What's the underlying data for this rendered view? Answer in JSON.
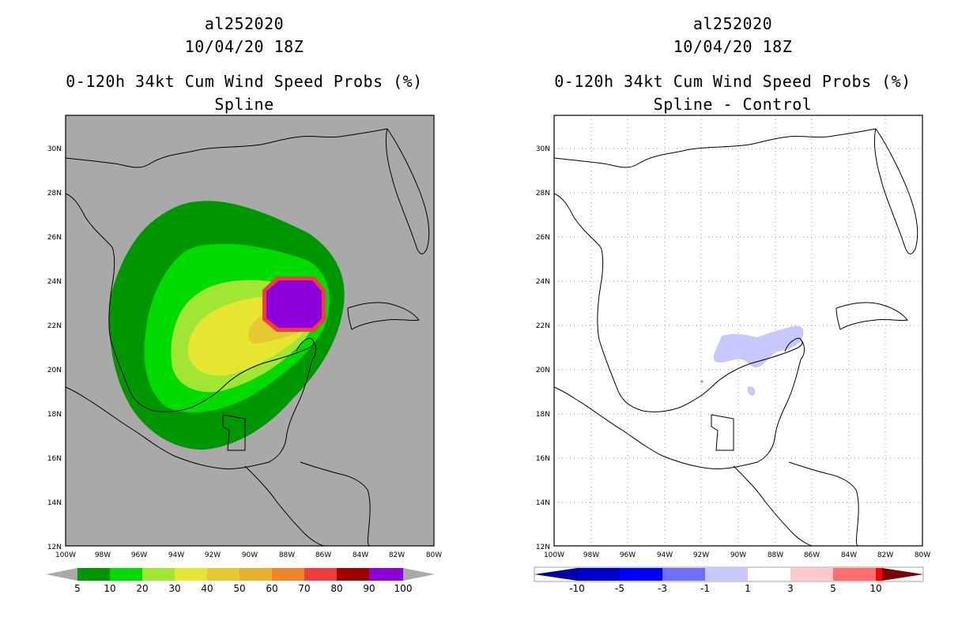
{
  "left": {
    "storm_id": "al252020",
    "datetime": "10/04/20 18Z",
    "title": "0-120h 34kt Cum Wind Speed Probs (%)",
    "subtitle": "Spline",
    "background_color": "#a9a9a9",
    "colorbar": {
      "colors": [
        "#009600",
        "#00dc00",
        "#a0e632",
        "#e6e632",
        "#e6c832",
        "#e6af2d",
        "#f08228",
        "#f03c3c",
        "#a00000",
        "#8c00dc"
      ],
      "labels": [
        "5",
        "10",
        "20",
        "30",
        "40",
        "50",
        "60",
        "70",
        "80",
        "90",
        "100"
      ]
    }
  },
  "right": {
    "storm_id": "al252020",
    "datetime": "10/04/20 18Z",
    "title": "0-120h 34kt Cum Wind Speed Probs (%)",
    "subtitle": "Spline - Control",
    "background_color": "#ffffff",
    "colorbar": {
      "colors": [
        "#0000c8",
        "#0000ff",
        "#6e6eff",
        "#c8c8ff",
        "#ffffff",
        "#ffc8c8",
        "#ff6e6e",
        "#ff0000",
        "#a00000"
      ],
      "labels": [
        "-10",
        "-5",
        "-3",
        "-1",
        "1",
        "3",
        "5",
        "10"
      ]
    }
  },
  "axes": {
    "lat_labels": [
      "30N",
      "28N",
      "26N",
      "24N",
      "22N",
      "20N",
      "18N",
      "16N",
      "14N",
      "12N"
    ],
    "lon_labels": [
      "100W",
      "98W",
      "96W",
      "94W",
      "92W",
      "90W",
      "88W",
      "86W",
      "84W",
      "82W",
      "80W"
    ]
  }
}
